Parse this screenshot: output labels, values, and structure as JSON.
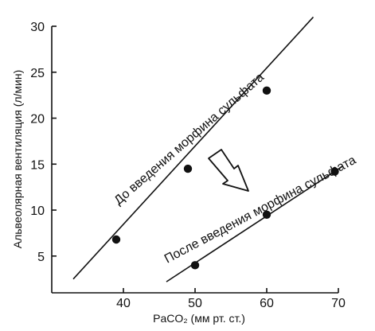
{
  "chart_data": {
    "type": "line",
    "xlabel": "PaCO₂ (мм рт. ст.)",
    "ylabel": "Альвеолярная вентиляция (л/мин)",
    "xlim": [
      30,
      70
    ],
    "ylim": [
      1,
      30
    ],
    "xticks": [
      40,
      50,
      60,
      70
    ],
    "yticks": [
      5,
      10,
      15,
      20,
      25,
      30
    ],
    "grid": false,
    "series": [
      {
        "name": "До введения морфина сульфата",
        "line": [
          [
            33,
            2.5
          ],
          [
            66.5,
            31.0
          ]
        ],
        "points": [
          [
            39,
            6.8
          ],
          [
            49,
            14.5
          ],
          [
            60,
            23.0
          ]
        ]
      },
      {
        "name": "После введения морфина сульфата",
        "line": [
          [
            46,
            2.2
          ],
          [
            73,
            16.0
          ]
        ],
        "points": [
          [
            50,
            4.0
          ],
          [
            60,
            9.5
          ],
          [
            69.5,
            14.2
          ]
        ]
      }
    ],
    "annotation": "arrow from upper line to lower line"
  }
}
